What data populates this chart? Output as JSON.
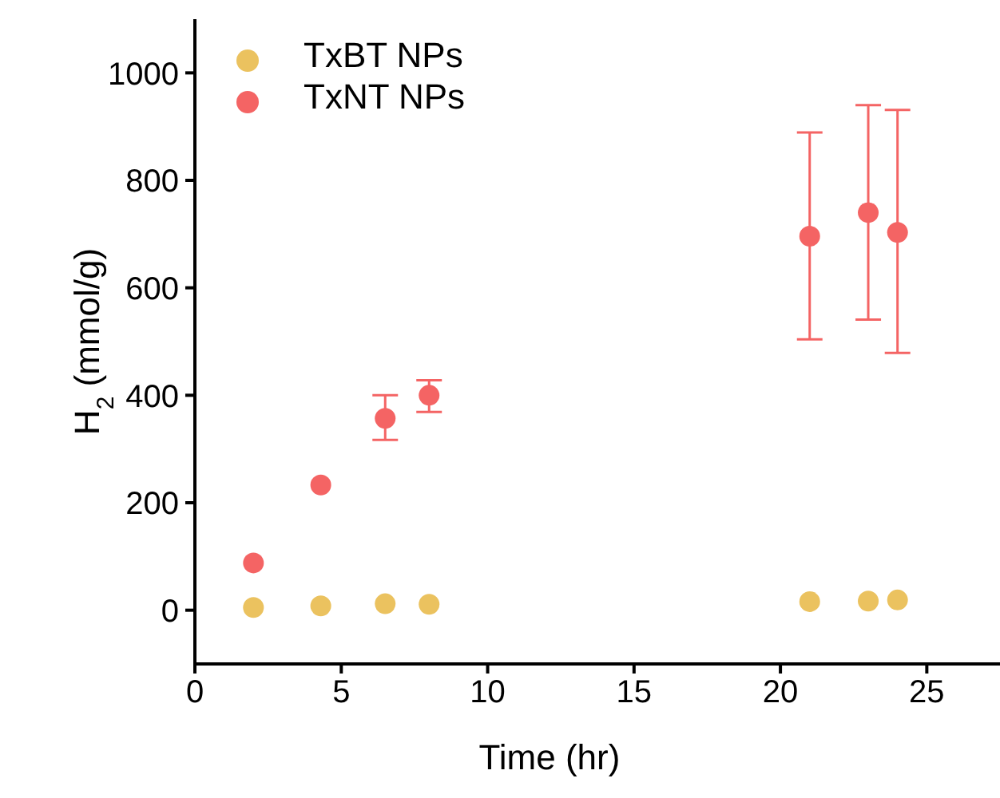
{
  "chart_data": {
    "type": "scatter",
    "xlabel": "Time (hr)",
    "ylabel": "H$_{2}$ (mmol/g)",
    "xlim": [
      0,
      27.5
    ],
    "xticks": [
      0,
      5,
      10,
      15,
      20,
      25
    ],
    "ylim": [
      -100,
      1100
    ],
    "yticks": [
      0,
      200,
      400,
      600,
      800,
      1000
    ],
    "grid": false,
    "legend": "top left",
    "marker": "circle",
    "series": [
      {
        "name": "TxBT NPs",
        "color": "#ebc25f",
        "x": [
          2,
          4.3,
          6.5,
          8,
          21,
          23,
          24
        ],
        "values": [
          5,
          8,
          12,
          11,
          16,
          17,
          19
        ]
      },
      {
        "name": "TxNT NPs",
        "color": "#f46464",
        "x": [
          2,
          4.3,
          6.5,
          8,
          21,
          23,
          24
        ],
        "values": [
          88,
          233,
          357,
          400,
          696,
          740,
          703
        ],
        "errors": [
          null,
          null,
          [
            317,
            400
          ],
          [
            369,
            428
          ],
          [
            504,
            889
          ],
          [
            541,
            940
          ],
          [
            479,
            931
          ]
        ]
      }
    ]
  }
}
